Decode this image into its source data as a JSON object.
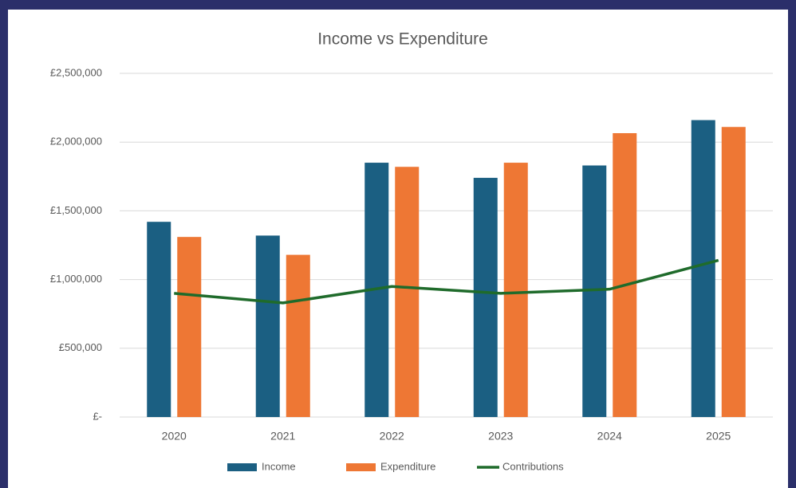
{
  "chart_data": {
    "type": "bar",
    "title": "Income vs Expenditure",
    "categories": [
      "2020",
      "2021",
      "2022",
      "2023",
      "2024",
      "2025"
    ],
    "series": [
      {
        "name": "Income",
        "color": "#1b5f82",
        "type": "bar",
        "values": [
          1420000,
          1320000,
          1850000,
          1740000,
          1830000,
          2160000
        ]
      },
      {
        "name": "Expenditure",
        "color": "#ee7734",
        "type": "bar",
        "values": [
          1310000,
          1180000,
          1820000,
          1850000,
          2065000,
          2110000
        ]
      },
      {
        "name": "Contributions",
        "color": "#1f6b2b",
        "type": "line",
        "values": [
          900000,
          830000,
          950000,
          900000,
          930000,
          1140000
        ]
      }
    ],
    "ylim": [
      0,
      2500000
    ],
    "yticks": [
      {
        "value": 0,
        "label": "£-"
      },
      {
        "value": 500000,
        "label": "£500,000"
      },
      {
        "value": 1000000,
        "label": "£1,000,000"
      },
      {
        "value": 1500000,
        "label": "£1,500,000"
      },
      {
        "value": 2000000,
        "label": "£2,000,000"
      },
      {
        "value": 2500000,
        "label": "£2,500,000"
      }
    ],
    "grid": true,
    "legend": "bottom"
  }
}
